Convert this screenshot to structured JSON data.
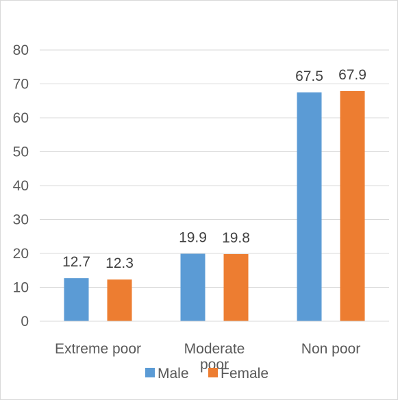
{
  "chart_data": {
    "type": "bar",
    "categories": [
      "Extreme poor",
      "Moderate poor",
      "Non poor"
    ],
    "series": [
      {
        "name": "Male",
        "values": [
          12.7,
          19.9,
          67.5
        ],
        "color": "#5b9bd5"
      },
      {
        "name": "Female",
        "values": [
          12.3,
          19.8,
          67.9
        ],
        "color": "#ed7d31"
      }
    ],
    "ylim": [
      0,
      80
    ],
    "yticks": [
      0,
      10,
      20,
      30,
      40,
      50,
      60,
      70,
      80
    ],
    "grid": true,
    "legend": "bottom"
  }
}
